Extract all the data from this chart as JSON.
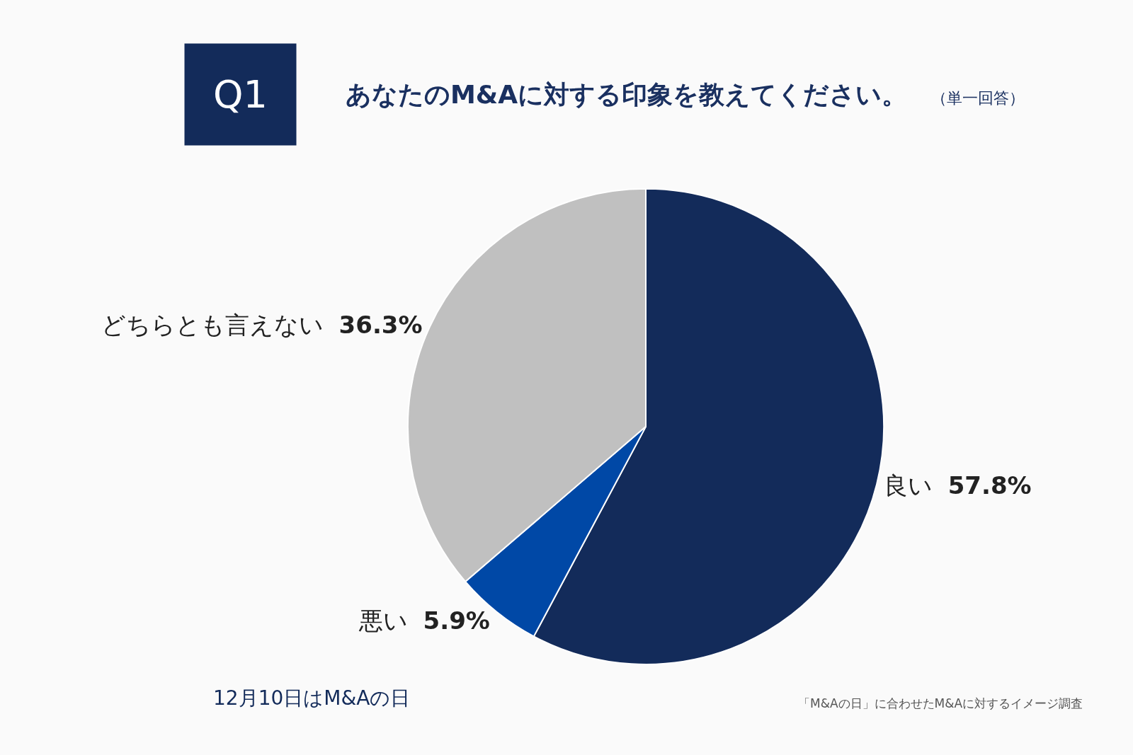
{
  "chart_data": {
    "type": "pie",
    "title": "あなたのM&Aに対する印象を教えてください。",
    "subtitle": "（単一回答）",
    "categories": [
      "良い",
      "悪い",
      "どちらとも言えない"
    ],
    "values": [
      57.8,
      5.9,
      36.3
    ],
    "colors": [
      "#132b5a",
      "#0048a6",
      "#c0c0c0"
    ],
    "value_labels": [
      "57.8%",
      "5.9%",
      "36.3%"
    ],
    "legend": false,
    "annotations": [
      "Q1",
      "12月10日はM&Aの日",
      "「M&Aの日」に合わせたM&Aに対するイメージ調査"
    ]
  }
}
